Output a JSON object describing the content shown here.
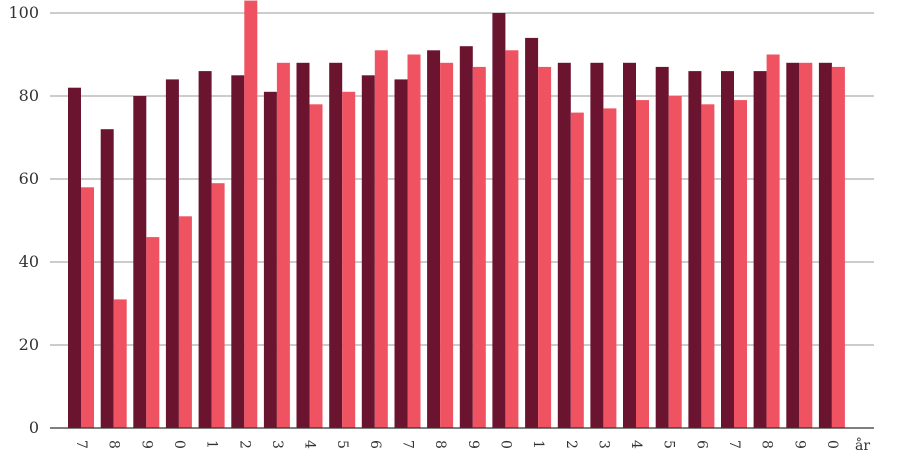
{
  "colors": {
    "series_a": "#6b1430",
    "series_b": "#ef5261",
    "grid": "#9a9a9a",
    "text": "#333333"
  },
  "chart_data": {
    "type": "bar",
    "categories": [
      "7",
      "8",
      "9",
      "0",
      "1",
      "2",
      "3",
      "4",
      "5",
      "6",
      "7",
      "8",
      "9",
      "0",
      "1",
      "2",
      "3",
      "4",
      "5",
      "6",
      "7",
      "8",
      "9",
      "0"
    ],
    "series": [
      {
        "values": [
          82,
          72,
          80,
          84,
          86,
          85,
          81,
          88,
          88,
          85,
          84,
          91,
          92,
          100,
          94,
          88,
          88,
          88,
          87,
          86,
          86,
          86,
          88,
          88
        ]
      },
      {
        "values": [
          58,
          31,
          46,
          51,
          59,
          103,
          88,
          78,
          81,
          91,
          90,
          88,
          87,
          91,
          87,
          76,
          77,
          79,
          80,
          78,
          79,
          90,
          88,
          87
        ]
      }
    ],
    "y_ticks": [
      "0",
      "20",
      "40",
      "60",
      "80",
      "100"
    ],
    "x_axis_unit": "år",
    "ylim": [
      0,
      100
    ],
    "grid": true
  }
}
